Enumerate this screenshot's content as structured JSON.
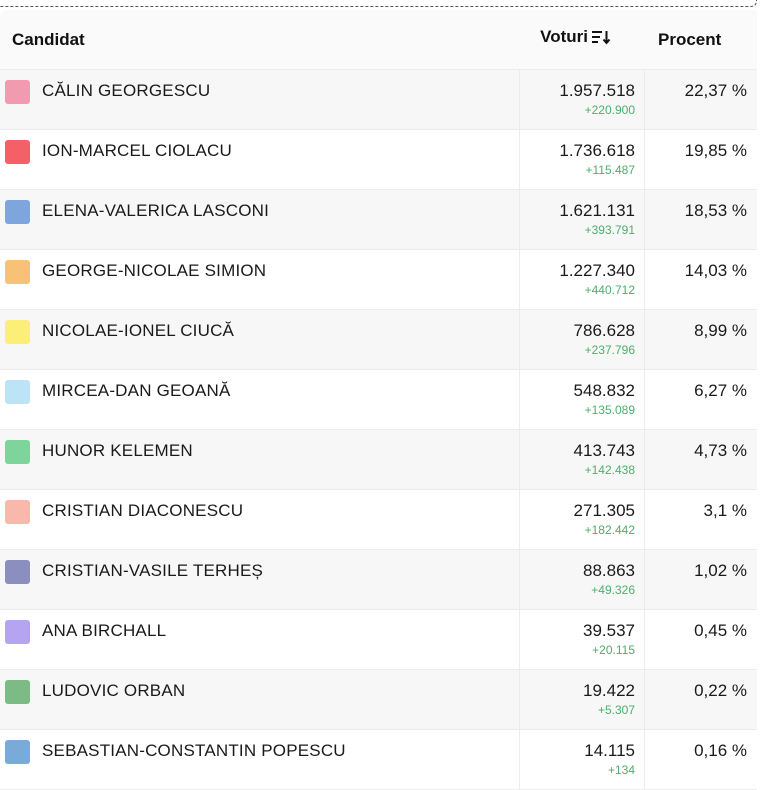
{
  "header": {
    "candidate": "Candidat",
    "votes": "Voturi",
    "percent": "Procent",
    "sort_icon": "sort-descending-icon"
  },
  "rows": [
    {
      "name": "CĂLIN GEORGESCU",
      "votes": "1.957.518",
      "delta": "+220.900",
      "percent": "22,37 %",
      "color": "#f29bb0"
    },
    {
      "name": "ION-MARCEL CIOLACU",
      "votes": "1.736.618",
      "delta": "+115.487",
      "percent": "19,85 %",
      "color": "#f55f67"
    },
    {
      "name": "ELENA-VALERICA LASCONI",
      "votes": "1.621.131",
      "delta": "+393.791",
      "percent": "18,53 %",
      "color": "#7ea6dc"
    },
    {
      "name": "GEORGE-NICOLAE SIMION",
      "votes": "1.227.340",
      "delta": "+440.712",
      "percent": "14,03 %",
      "color": "#f7c275"
    },
    {
      "name": "NICOLAE-IONEL CIUCĂ",
      "votes": "786.628",
      "delta": "+237.796",
      "percent": "8,99 %",
      "color": "#fbef77"
    },
    {
      "name": "MIRCEA-DAN GEOANĂ",
      "votes": "548.832",
      "delta": "+135.089",
      "percent": "6,27 %",
      "color": "#bde3f7"
    },
    {
      "name": "HUNOR KELEMEN",
      "votes": "413.743",
      "delta": "+142.438",
      "percent": "4,73 %",
      "color": "#7fd49c"
    },
    {
      "name": "CRISTIAN DIACONESCU",
      "votes": "271.305",
      "delta": "+182.442",
      "percent": "3,1 %",
      "color": "#f8b8ac"
    },
    {
      "name": "CRISTIAN-VASILE TERHEȘ",
      "votes": "88.863",
      "delta": "+49.326",
      "percent": "1,02 %",
      "color": "#8b8fc0"
    },
    {
      "name": "ANA BIRCHALL",
      "votes": "39.537",
      "delta": "+20.115",
      "percent": "0,45 %",
      "color": "#b5a5f0"
    },
    {
      "name": "LUDOVIC ORBAN",
      "votes": "19.422",
      "delta": "+5.307",
      "percent": "0,22 %",
      "color": "#7cba86"
    },
    {
      "name": "SEBASTIAN-CONSTANTIN POPESCU",
      "votes": "14.115",
      "delta": "+134",
      "percent": "0,16 %",
      "color": "#7aabd8"
    }
  ]
}
